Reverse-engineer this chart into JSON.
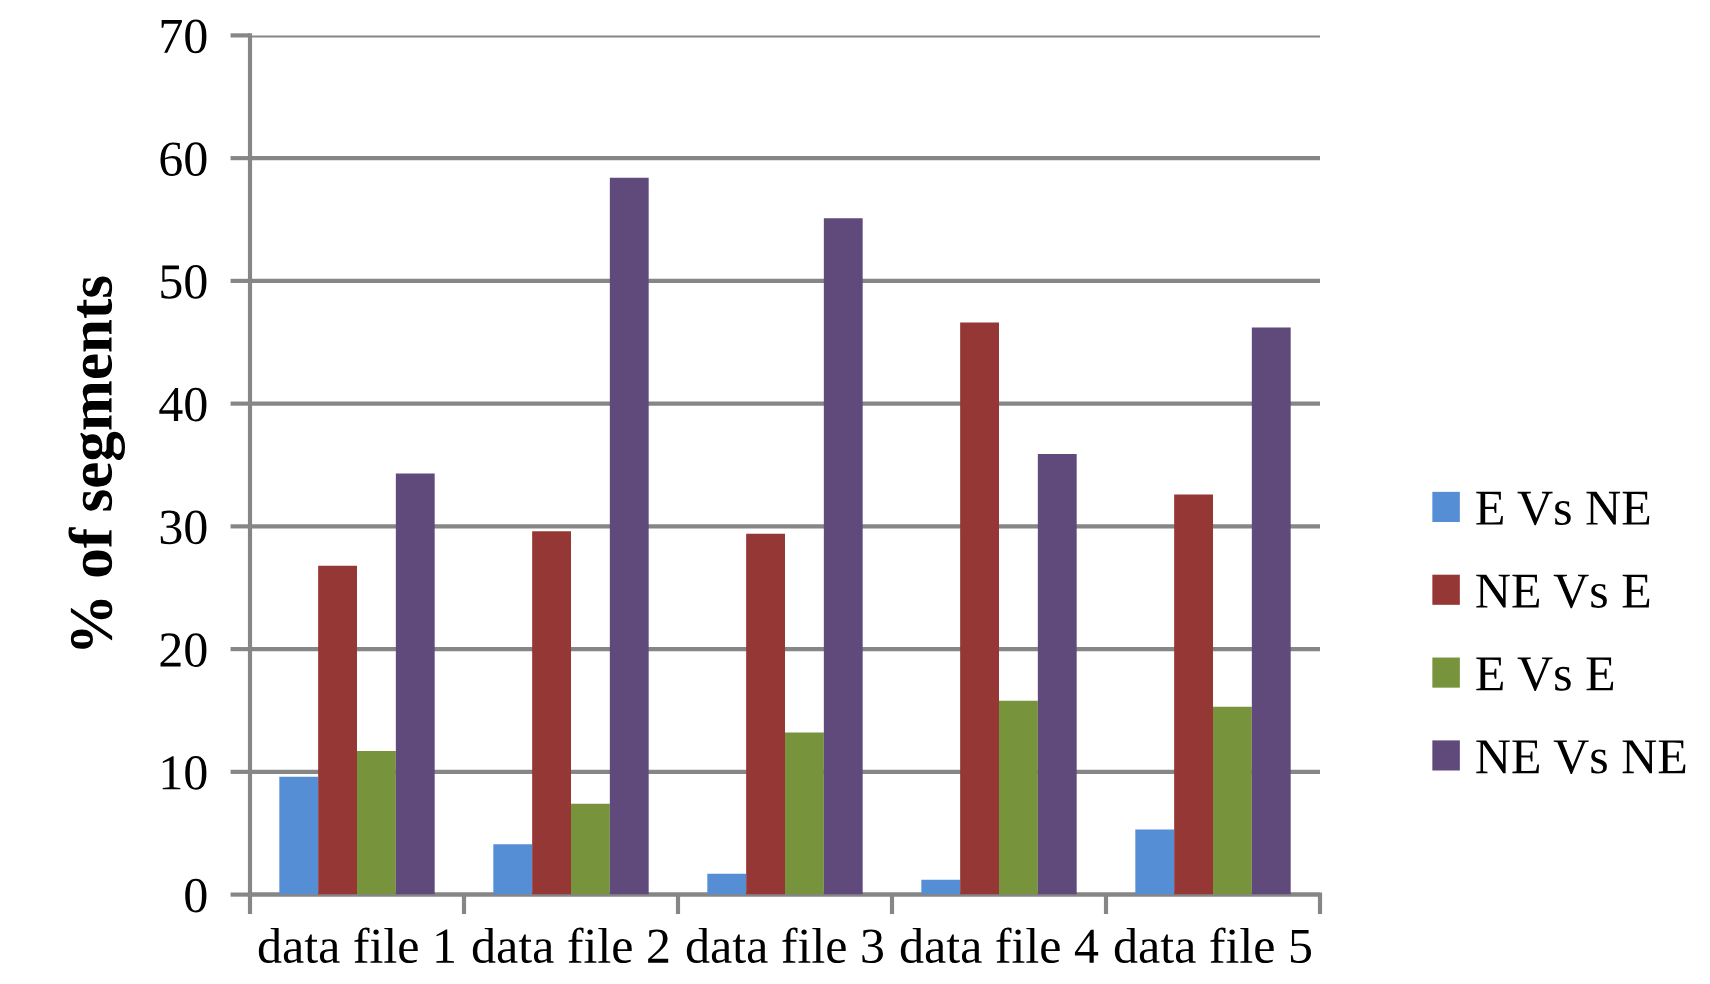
{
  "chart_data": {
    "type": "bar",
    "ylabel": "% of segments",
    "categories": [
      "data file 1",
      "data file 2",
      "data file 3",
      "data file 4",
      "data file 5"
    ],
    "series": [
      {
        "name": "E Vs NE",
        "color": "#558ed5",
        "values": [
          9.6,
          4.1,
          1.7,
          1.2,
          5.3
        ]
      },
      {
        "name": "NE Vs E",
        "color": "#953735",
        "values": [
          26.8,
          29.6,
          29.4,
          46.6,
          32.6
        ]
      },
      {
        "name": "E Vs E",
        "color": "#77933c",
        "values": [
          11.7,
          7.4,
          13.2,
          15.8,
          15.3
        ]
      },
      {
        "name": "NE Vs NE",
        "color": "#604a7b",
        "values": [
          34.3,
          58.4,
          55.1,
          35.9,
          46.2
        ]
      }
    ],
    "ylim": [
      0,
      70
    ],
    "yticks": [
      0,
      10,
      20,
      30,
      40,
      50,
      60,
      70
    ],
    "grid": "y",
    "legend": "right"
  }
}
